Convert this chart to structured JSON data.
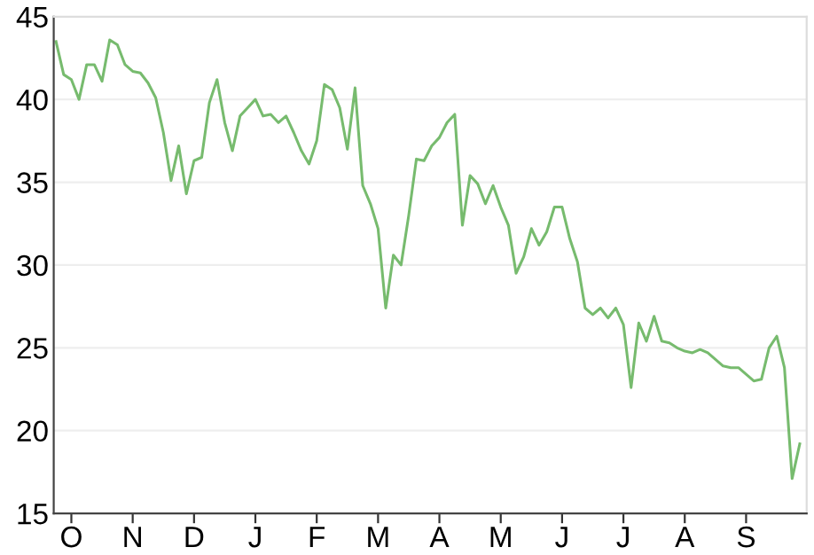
{
  "chart_data": {
    "type": "line",
    "categories": [
      null,
      null,
      "O",
      null,
      null,
      null,
      null,
      null,
      null,
      null,
      "N",
      null,
      null,
      null,
      null,
      null,
      null,
      null,
      "D",
      null,
      null,
      null,
      null,
      null,
      null,
      null,
      "J",
      null,
      null,
      null,
      null,
      null,
      null,
      null,
      "F",
      null,
      null,
      null,
      null,
      null,
      null,
      null,
      "M",
      null,
      null,
      null,
      null,
      null,
      null,
      null,
      "A",
      null,
      null,
      null,
      null,
      null,
      null,
      null,
      "M",
      null,
      null,
      null,
      null,
      null,
      null,
      null,
      "J",
      null,
      null,
      null,
      null,
      null,
      null,
      null,
      "J",
      null,
      null,
      null,
      null,
      null,
      null,
      null,
      "A",
      null,
      null,
      null,
      null,
      null,
      null,
      null,
      "S",
      null,
      null,
      null,
      null,
      null,
      null,
      null
    ],
    "series": [
      {
        "color": "#77bb6e",
        "values": [
          43.5,
          41.5,
          41.2,
          40.0,
          42.1,
          42.1,
          41.1,
          43.6,
          43.3,
          42.1,
          41.7,
          41.6,
          41.0,
          40.1,
          38.0,
          35.1,
          37.2,
          34.3,
          36.3,
          36.5,
          39.8,
          41.2,
          38.6,
          36.9,
          39.0,
          39.5,
          40.0,
          39.0,
          39.1,
          38.6,
          39.0,
          38.0,
          36.9,
          36.1,
          37.5,
          40.9,
          40.6,
          39.5,
          37.0,
          40.7,
          34.8,
          33.7,
          32.2,
          27.4,
          30.6,
          30.0,
          33.0,
          36.4,
          36.3,
          37.2,
          37.7,
          38.6,
          39.1,
          32.4,
          35.4,
          34.9,
          33.7,
          34.8,
          33.5,
          32.4,
          29.5,
          30.5,
          32.2,
          31.2,
          32.0,
          33.5,
          33.5,
          31.6,
          30.2,
          27.4,
          27.0,
          27.4,
          26.8,
          27.4,
          26.4,
          22.6,
          26.5,
          25.4,
          26.9,
          25.4,
          25.3,
          25.0,
          24.8,
          24.7,
          24.9,
          24.7,
          24.3,
          23.9,
          23.8,
          23.8,
          23.4,
          23.0,
          23.1,
          25.0,
          25.7,
          23.8,
          17.1,
          19.2
        ]
      }
    ],
    "ylim": [
      15,
      45
    ],
    "yticks": [
      15,
      20,
      25,
      30,
      35,
      40,
      45
    ],
    "grid": "y",
    "marker": "none",
    "line_style": "solid"
  }
}
